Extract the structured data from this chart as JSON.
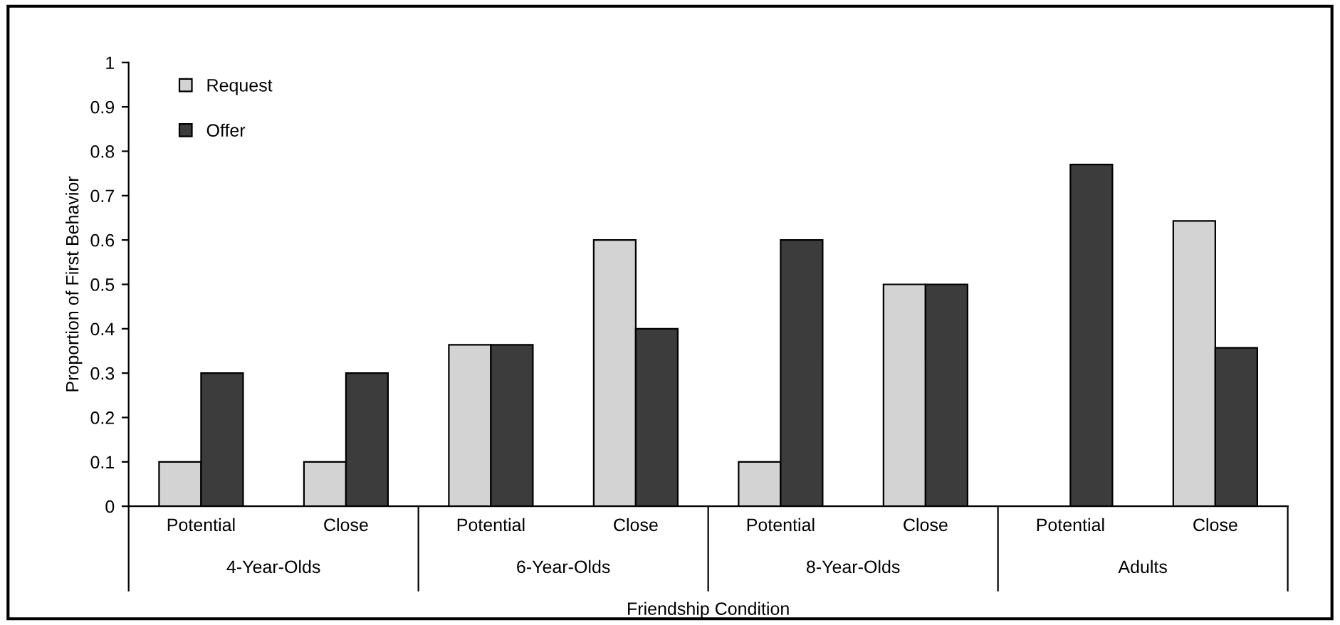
{
  "chart_data": {
    "type": "bar",
    "xlabel": "Friendship Condition",
    "ylabel": "Proportion of First Behavior",
    "categories": [
      "Potential",
      "Close",
      "Potential",
      "Close",
      "Potential",
      "Close",
      "Potential",
      "Close"
    ],
    "series": [
      {
        "name": "Request",
        "color": "#d3d3d3",
        "values": [
          0.1,
          0.1,
          0.364,
          0.6,
          0.1,
          0.5,
          null,
          0.643
        ]
      },
      {
        "name": "Offer",
        "color": "#3c3c3c",
        "values": [
          0.3,
          0.3,
          0.364,
          0.4,
          0.6,
          0.5,
          0.77,
          0.357
        ]
      }
    ],
    "annotations": [
      "4-Year-Olds",
      "6-Year-Olds",
      "8-Year-Olds",
      "Adults"
    ],
    "ylim": [
      0,
      1
    ],
    "yticks": [
      0,
      0.1,
      0.2,
      0.3,
      0.4,
      0.5,
      0.6,
      0.7,
      0.8,
      0.9,
      1
    ],
    "grid": false,
    "legend": "top left"
  }
}
